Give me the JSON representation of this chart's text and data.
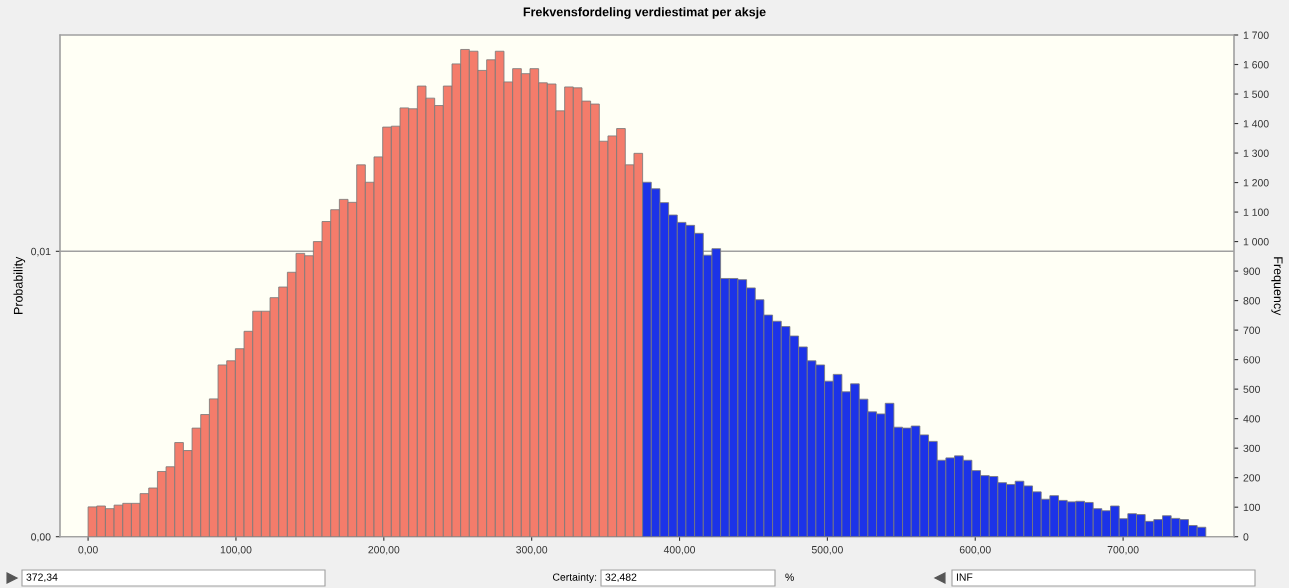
{
  "chart_data": {
    "type": "histogram",
    "title": "Frekvensfordeling verdiestimat per aksje",
    "ylabel": "Probability",
    "y2label": "Frequency",
    "bins": [
      0,
      5.86,
      11.72,
      17.58,
      23.44,
      29.3,
      35.16,
      41.02,
      46.88,
      52.74,
      58.6,
      64.46,
      70.32,
      76.18,
      82.04,
      87.9,
      93.76,
      99.62,
      105.48,
      111.34,
      117.2,
      123.06,
      128.92,
      134.78,
      140.64,
      146.5,
      152.36,
      158.22,
      164.08,
      169.94,
      175.8,
      181.66,
      187.52,
      193.38,
      199.24,
      205.1,
      210.96,
      216.82,
      222.68,
      228.54,
      234.4,
      240.26,
      246.12,
      251.98,
      257.84,
      263.7,
      269.56,
      275.42,
      281.28,
      287.14,
      293,
      298.86,
      304.72,
      310.58,
      316.44,
      322.3,
      328.16,
      334.02,
      339.88,
      345.74,
      351.6,
      357.46,
      363.32,
      369.18,
      375.04,
      380.9,
      386.76,
      392.62,
      398.48,
      404.34,
      410.2,
      416.06,
      421.92,
      427.78,
      433.64,
      439.5,
      445.36,
      451.22,
      457.08,
      462.94,
      468.8,
      474.66,
      480.52,
      486.38,
      492.24,
      498.1,
      503.96,
      509.82,
      515.68,
      521.54,
      527.4,
      533.26,
      539.12,
      544.98,
      550.84,
      556.7,
      562.56,
      568.42,
      574.28,
      580.14,
      586,
      591.86,
      597.72,
      603.58,
      609.44,
      615.3,
      621.16,
      627.02,
      632.88,
      638.74,
      644.6,
      650.46,
      656.32,
      662.18,
      668.04,
      673.9,
      679.76,
      685.62,
      691.48,
      697.34,
      703.2,
      709.06,
      714.92,
      720.78,
      726.64,
      732.5,
      738.36,
      744.22,
      750.08,
      755.94
    ],
    "series": [
      {
        "axis": "y2",
        "values": [
          101,
          104,
          95,
          107,
          113,
          113,
          146,
          165,
          221,
          237,
          319,
          292,
          368,
          414,
          467,
          582,
          596,
          637,
          696,
          764,
          764,
          810,
          846,
          896,
          960,
          952,
          1000,
          1068,
          1108,
          1143,
          1133,
          1260,
          1201,
          1287,
          1388,
          1391,
          1453,
          1450,
          1527,
          1486,
          1461,
          1527,
          1602,
          1651,
          1645,
          1580,
          1616,
          1645,
          1541,
          1586,
          1569,
          1586,
          1538,
          1534,
          1443,
          1524,
          1521,
          1476,
          1466,
          1340,
          1358,
          1383,
          1260,
          1299,
          1201,
          1179,
          1132,
          1090,
          1065,
          1055,
          1028,
          954,
          976,
          875,
          875,
          871,
          843,
          803,
          751,
          730,
          712,
          680,
          643,
          596,
          582,
          527,
          550,
          491,
          518,
          466,
          423,
          416,
          452,
          371,
          368,
          375,
          345,
          323,
          259,
          267,
          274,
          259,
          224,
          207,
          204,
          183,
          177,
          188,
          172,
          152,
          127,
          139,
          123,
          118,
          120,
          116,
          95,
          88,
          104,
          61,
          78,
          75,
          52,
          58,
          71,
          62,
          58,
          38,
          32
        ],
        "colors": [
          "#f47c6b",
          "#f47c6b",
          "#f47c6b",
          "#f47c6b",
          "#f47c6b",
          "#f47c6b",
          "#f47c6b",
          "#f47c6b",
          "#f47c6b",
          "#f47c6b",
          "#f47c6b",
          "#f47c6b",
          "#f47c6b",
          "#f47c6b",
          "#f47c6b",
          "#f47c6b",
          "#f47c6b",
          "#f47c6b",
          "#f47c6b",
          "#f47c6b",
          "#f47c6b",
          "#f47c6b",
          "#f47c6b",
          "#f47c6b",
          "#f47c6b",
          "#f47c6b",
          "#f47c6b",
          "#f47c6b",
          "#f47c6b",
          "#f47c6b",
          "#f47c6b",
          "#f47c6b",
          "#f47c6b",
          "#f47c6b",
          "#f47c6b",
          "#f47c6b",
          "#f47c6b",
          "#f47c6b",
          "#f47c6b",
          "#f47c6b",
          "#f47c6b",
          "#f47c6b",
          "#f47c6b",
          "#f47c6b",
          "#f47c6b",
          "#f47c6b",
          "#f47c6b",
          "#f47c6b",
          "#f47c6b",
          "#f47c6b",
          "#f47c6b",
          "#f47c6b",
          "#f47c6b",
          "#f47c6b",
          "#f47c6b",
          "#f47c6b",
          "#f47c6b",
          "#f47c6b",
          "#f47c6b",
          "#f47c6b",
          "#f47c6b",
          "#f47c6b",
          "#f47c6b",
          "#f47c6b",
          "#1c33e8",
          "#1c33e8",
          "#1c33e8",
          "#1c33e8",
          "#1c33e8",
          "#1c33e8",
          "#1c33e8",
          "#1c33e8",
          "#1c33e8",
          "#1c33e8",
          "#1c33e8",
          "#1c33e8",
          "#1c33e8",
          "#1c33e8",
          "#1c33e8",
          "#1c33e8",
          "#1c33e8",
          "#1c33e8",
          "#1c33e8",
          "#1c33e8",
          "#1c33e8",
          "#1c33e8",
          "#1c33e8",
          "#1c33e8",
          "#1c33e8",
          "#1c33e8",
          "#1c33e8",
          "#1c33e8",
          "#1c33e8",
          "#1c33e8",
          "#1c33e8",
          "#1c33e8",
          "#1c33e8",
          "#1c33e8",
          "#1c33e8",
          "#1c33e8",
          "#1c33e8",
          "#1c33e8",
          "#1c33e8",
          "#1c33e8",
          "#1c33e8",
          "#1c33e8",
          "#1c33e8",
          "#1c33e8",
          "#1c33e8",
          "#1c33e8",
          "#1c33e8",
          "#1c33e8",
          "#1c33e8",
          "#1c33e8",
          "#1c33e8",
          "#1c33e8",
          "#1c33e8",
          "#1c33e8",
          "#1c33e8",
          "#1c33e8",
          "#1c33e8",
          "#1c33e8",
          "#1c33e8",
          "#1c33e8",
          "#1c33e8",
          "#1c33e8",
          "#1c33e8",
          "#1c33e8",
          "#1c33e8"
        ]
      }
    ],
    "xlim": [
      -19,
      775
    ],
    "xticks": [
      {
        "value": 0,
        "label": "0,00"
      },
      {
        "value": 100,
        "label": "100,00"
      },
      {
        "value": 200,
        "label": "200,00"
      },
      {
        "value": 300,
        "label": "300,00"
      },
      {
        "value": 400,
        "label": "400,00"
      },
      {
        "value": 500,
        "label": "500,00"
      },
      {
        "value": 600,
        "label": "600,00"
      },
      {
        "value": 700,
        "label": "700,00"
      }
    ],
    "ylim": [
      0,
      0.01758
    ],
    "yticks": [
      {
        "value": 0,
        "label": "0,00"
      },
      {
        "value": 0.01,
        "label": "0,01"
      }
    ],
    "y2lim": [
      0,
      1700
    ],
    "y2ticks": [
      0,
      100,
      200,
      300,
      400,
      500,
      600,
      700,
      800,
      900,
      {
        "value": 1000,
        "label": "1 000"
      },
      {
        "value": 1100,
        "label": "1 100"
      },
      {
        "value": 1200,
        "label": "1 200"
      },
      {
        "value": 1300,
        "label": "1 300"
      },
      {
        "value": 1400,
        "label": "1 400"
      },
      {
        "value": 1500,
        "label": "1 500"
      },
      {
        "value": 1600,
        "label": "1 600"
      },
      {
        "value": 1700,
        "label": "1 700"
      }
    ],
    "grid": "y",
    "annotations": [
      "372,34",
      "Certainty:",
      "32,482",
      "%",
      "INF"
    ]
  }
}
